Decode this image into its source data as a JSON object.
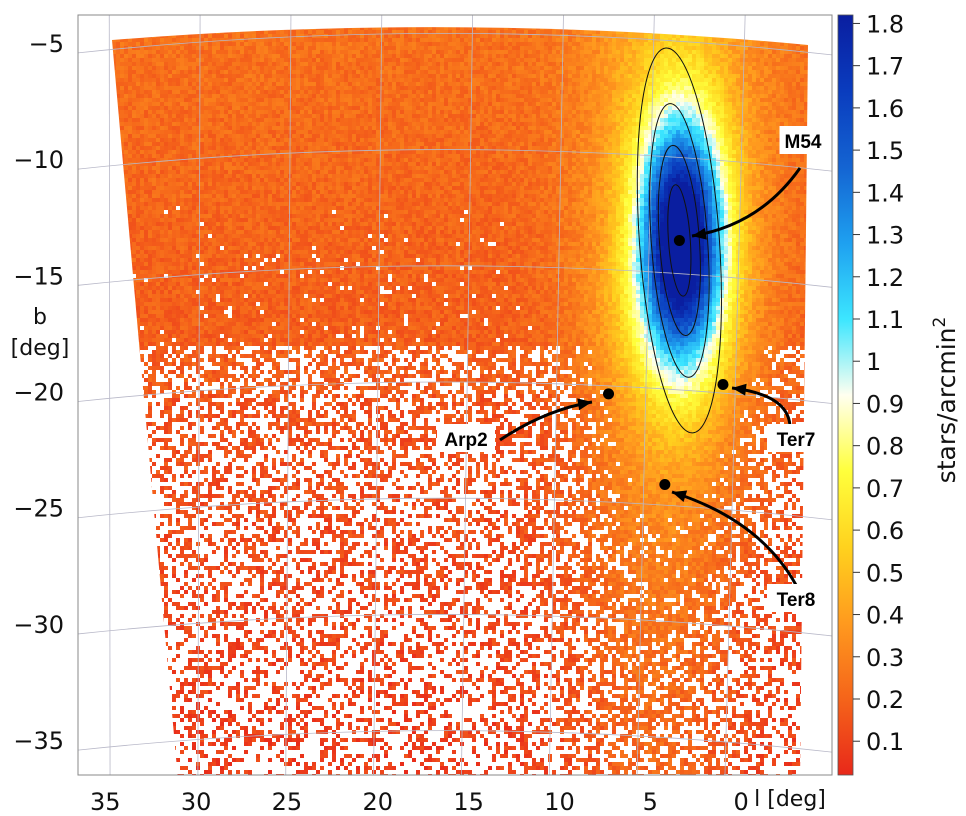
{
  "chart_data": {
    "type": "heatmap",
    "xlabel": "l [deg]",
    "ylabel_line1": "b",
    "ylabel_line2": "[deg]",
    "xlim": [
      36.5,
      -5
    ],
    "ylim": [
      -36.5,
      -3.8
    ],
    "x_ticks": [
      "35",
      "30",
      "25",
      "20",
      "15",
      "10",
      "5",
      "0"
    ],
    "x_tick_values": [
      35,
      30,
      25,
      20,
      15,
      10,
      5,
      0
    ],
    "y_ticks": [
      "−5",
      "−10",
      "−15",
      "−20",
      "−25",
      "−30",
      "−35"
    ],
    "y_tick_values": [
      -5,
      -10,
      -15,
      -20,
      -25,
      -30,
      -35
    ],
    "colorbar": {
      "label": "stars/arcmin",
      "label_superscript": "2",
      "range": [
        0.02,
        1.82
      ],
      "ticks": [
        "1.8",
        "1.7",
        "1.6",
        "1.5",
        "1.4",
        "1.3",
        "1.2",
        "1.1",
        "1",
        "0.9",
        "0.8",
        "0.7",
        "0.6",
        "0.5",
        "0.4",
        "0.3",
        "0.2",
        "0.1"
      ],
      "tick_values": [
        1.8,
        1.7,
        1.6,
        1.5,
        1.4,
        1.3,
        1.2,
        1.1,
        1.0,
        0.9,
        0.8,
        0.7,
        0.6,
        0.5,
        0.4,
        0.3,
        0.2,
        0.1
      ],
      "colors": [
        "#e8281a",
        "#f5641a",
        "#ff9a1e",
        "#ffd21e",
        "#ffff3c",
        "#fffff0",
        "#3ce6ff",
        "#1ea0f0",
        "#1464d2",
        "#0a3cbe",
        "#0a1ea0"
      ]
    },
    "peak": {
      "l": 3.4,
      "b": -13.5,
      "density": 1.6
    },
    "clusters": [
      {
        "name": "M54",
        "l": 3.4,
        "b": -13.5
      },
      {
        "name": "Arp2",
        "l": 7.3,
        "b": -20.1
      },
      {
        "name": "Ter7",
        "l": 1.0,
        "b": -19.7
      },
      {
        "name": "Ter8",
        "l": 4.2,
        "b": -24.0
      }
    ],
    "grid": true
  }
}
